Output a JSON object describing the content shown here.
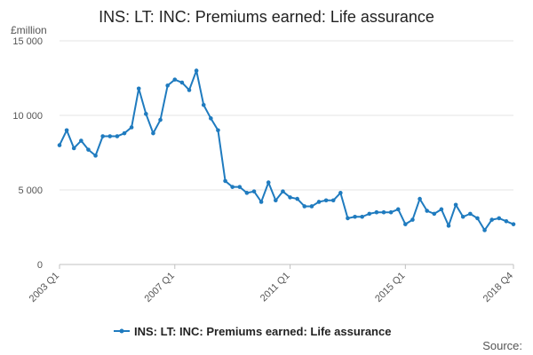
{
  "chart_data": {
    "type": "line",
    "title": "INS: LT: INC: Premiums earned: Life assurance",
    "unit_label": "£million",
    "ylim": [
      0,
      15000
    ],
    "y_ticks": [
      0,
      5000,
      10000,
      15000
    ],
    "y_tick_labels": [
      "0",
      "5 000",
      "10 000",
      "15 000"
    ],
    "x_tick_labels": [
      "2003 Q1",
      "2007 Q1",
      "2011 Q1",
      "2015 Q1",
      "2018 Q4"
    ],
    "x_tick_indices": [
      0,
      16,
      32,
      48,
      63
    ],
    "grid": true,
    "legend_position": "bottom",
    "series": [
      {
        "name": "INS: LT: INC: Premiums earned: Life assurance",
        "color": "#1f7bbf",
        "values": [
          8000,
          9000,
          7800,
          8300,
          7700,
          7300,
          8600,
          8600,
          8600,
          8800,
          9200,
          11800,
          10100,
          8800,
          9700,
          12000,
          12400,
          12200,
          11700,
          13000,
          10700,
          9800,
          9000,
          5600,
          5200,
          5200,
          4800,
          4900,
          4200,
          5500,
          4300,
          4900,
          4500,
          4400,
          3900,
          3900,
          4200,
          4300,
          4300,
          4800,
          3100,
          3200,
          3200,
          3400,
          3500,
          3500,
          3500,
          3700,
          2700,
          3000,
          4400,
          3600,
          3400,
          3700,
          2600,
          4000,
          3200,
          3400,
          3100,
          2300,
          3000,
          3100,
          2900,
          2700
        ]
      }
    ]
  },
  "footer": {
    "source_label": "Source:"
  }
}
